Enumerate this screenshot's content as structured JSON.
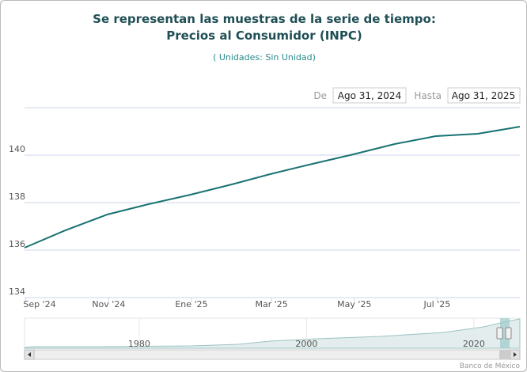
{
  "chart_data": {
    "type": "line",
    "title": [
      "Se representan las muestras de la serie de tiempo:",
      "Precios al Consumidor (INPC)"
    ],
    "subtitle": "( Unidades:  Sin Unidad)",
    "range_selector": {
      "from_label": "De",
      "from": "Ago 31, 2024",
      "to_label": "Hasta",
      "to": "Ago 31, 2025"
    },
    "xlim": [
      "2024-08-31",
      "2025-08-31"
    ],
    "x": [
      "2024-08-31",
      "2024-09-30",
      "2024-10-31",
      "2024-11-30",
      "2024-12-31",
      "2025-01-31",
      "2025-02-28",
      "2025-03-31",
      "2025-04-30",
      "2025-05-31",
      "2025-06-30",
      "2025-07-31",
      "2025-08-31"
    ],
    "series": [
      {
        "color": "#1a7272",
        "values": [
          136.1,
          136.83,
          137.5,
          137.93,
          138.33,
          138.77,
          139.2,
          139.63,
          140.03,
          140.47,
          140.8,
          140.9,
          141.2
        ]
      }
    ],
    "xticks": [
      {
        "value": "2024-09-01",
        "label": "Sep '24"
      },
      {
        "value": "2024-11-01",
        "label": "Nov '24"
      },
      {
        "value": "2025-01-01",
        "label": "Ene '25"
      },
      {
        "value": "2025-03-01",
        "label": "Mar '25"
      },
      {
        "value": "2025-05-01",
        "label": "May '25"
      },
      {
        "value": "2025-07-01",
        "label": "Jul '25"
      }
    ],
    "ylim": [
      134,
      142
    ],
    "yticks": [
      134,
      136,
      138,
      140
    ],
    "grid": true,
    "navigator": {
      "xlim": [
        1966.3,
        2025.5
      ],
      "xticks": [
        1980,
        2000,
        2020
      ]
    },
    "credits": "Banco de México"
  }
}
